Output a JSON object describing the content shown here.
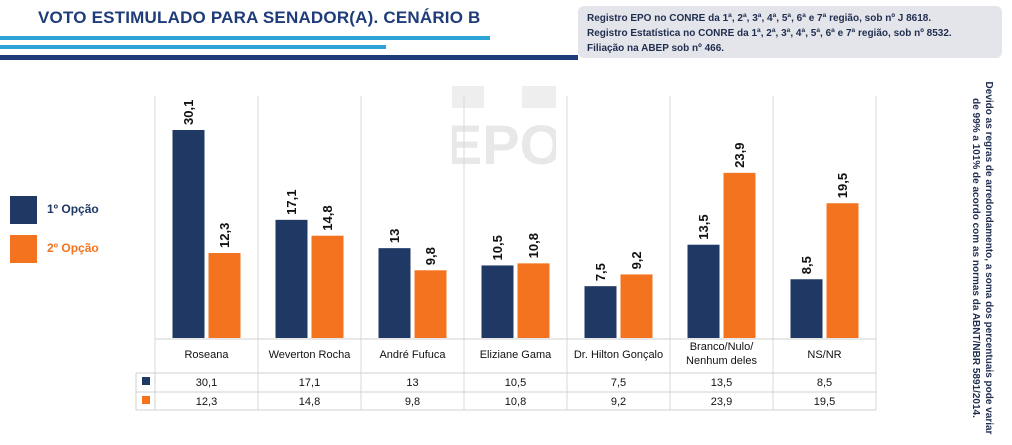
{
  "header": {
    "title": "VOTO ESTIMULADO PARA SENADOR(A).  CENÁRIO B",
    "registry": [
      "Registro EPO no CONRE da 1ª, 2ª, 3ª, 4ª, 5ª, 6ª e 7ª região, sob nº J 8618.",
      "Registro Estatística no CONRE da 1ª, 2ª, 3ª, 4ª, 5ª, 6ª e 7ª região, sob nº 8532.",
      "Filiação na ABEP sob nº 466."
    ]
  },
  "watermark": "EPO",
  "side_note": "Devido as regras de arredondamento, a soma dos percentuais pode variar de 99% a 101% de acordo com as normas da ABNT/NBR 5891/2014.",
  "colors": {
    "series1": "#1f3864",
    "series2": "#f4731e",
    "title": "#1f3c7a",
    "accent": "#2ea3d8"
  },
  "chart_data": {
    "type": "bar",
    "title": "VOTO ESTIMULADO PARA SENADOR(A).  CENÁRIO B",
    "categories": [
      "Roseana",
      "Weverton Rocha",
      "André Fufuca",
      "Eliziane Gama",
      "Dr. Hilton Gonçalo",
      "Branco/Nulo/ Nenhum deles",
      "NS/NR"
    ],
    "category_lines": [
      [
        "Roseana"
      ],
      [
        "Weverton Rocha"
      ],
      [
        "André Fufuca"
      ],
      [
        "Eliziane Gama"
      ],
      [
        "Dr. Hilton Gonçalo"
      ],
      [
        "Branco/Nulo/",
        "Nenhum deles"
      ],
      [
        "NS/NR"
      ]
    ],
    "series": [
      {
        "name": "1º Opção",
        "values": [
          30.1,
          17.1,
          13,
          10.5,
          7.5,
          13.5,
          8.5
        ],
        "labels": [
          "30,1",
          "17,1",
          "13",
          "10,5",
          "7,5",
          "13,5",
          "8,5"
        ]
      },
      {
        "name": "2º Opção",
        "values": [
          12.3,
          14.8,
          9.8,
          10.8,
          9.2,
          23.9,
          19.5
        ],
        "labels": [
          "12,3",
          "14,8",
          "9,8",
          "10,8",
          "9,2",
          "23,9",
          "19,5"
        ]
      }
    ],
    "ylim": [
      0,
      30.1
    ],
    "grid": false,
    "legend": "left",
    "data_table": true
  }
}
